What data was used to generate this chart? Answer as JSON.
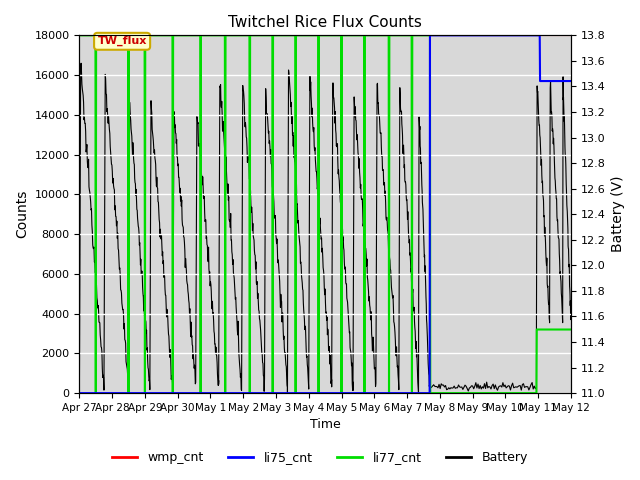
{
  "title": "Twitchel Rice Flux Counts",
  "xlabel": "Time",
  "ylabel_left": "Counts",
  "ylabel_right": "Battery (V)",
  "ylim_left": [
    0,
    18000
  ],
  "ylim_right": [
    11.0,
    13.8
  ],
  "yticks_left": [
    0,
    2000,
    4000,
    6000,
    8000,
    10000,
    12000,
    14000,
    16000,
    18000
  ],
  "yticks_right": [
    11.0,
    11.2,
    11.4,
    11.6,
    11.8,
    12.0,
    12.2,
    12.4,
    12.6,
    12.8,
    13.0,
    13.2,
    13.4,
    13.6,
    13.8
  ],
  "xtick_labels": [
    "Apr 27",
    "Apr 28",
    "Apr 29",
    "Apr 30",
    "May 1",
    "May 2",
    "May 3",
    "May 4",
    "May 5",
    "May 6",
    "May 7",
    "May 8",
    "May 9",
    "May 10",
    "May 11",
    "May 12"
  ],
  "annotation_text": "TW_flux",
  "colors": {
    "wmp_cnt": "#ff0000",
    "li75_cnt": "#0000ff",
    "li77_cnt": "#00dd00",
    "battery": "#000000",
    "annotation_bg": "#ffffcc",
    "annotation_border": "#ccaa00",
    "annotation_text": "#cc0000",
    "gray_band": "#d8d8d8"
  },
  "legend_labels": [
    "wmp_cnt",
    "li75_cnt",
    "li77_cnt",
    "Battery"
  ],
  "figsize": [
    6.4,
    4.8
  ],
  "dpi": 100
}
